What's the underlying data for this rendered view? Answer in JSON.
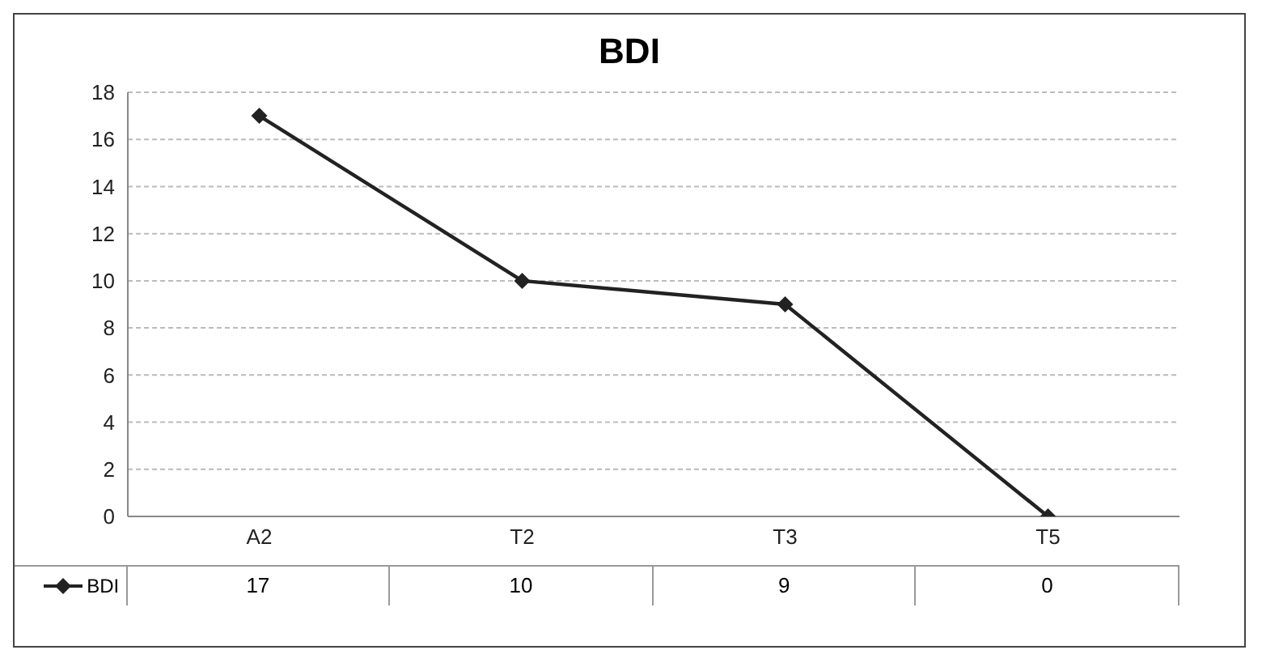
{
  "chart_data": {
    "type": "line",
    "title": "BDI",
    "categories": [
      "A2",
      "T2",
      "T3",
      "T5"
    ],
    "series": [
      {
        "name": "BDI",
        "color": "#222222",
        "values": [
          17,
          10,
          9,
          0
        ]
      }
    ],
    "ylim": [
      0,
      18
    ],
    "yticks": [
      0,
      2,
      4,
      6,
      8,
      10,
      12,
      14,
      16,
      18
    ],
    "grid": "y",
    "legend": "bottom",
    "marker": "diamond",
    "line_style": "solid",
    "data_labels": true
  }
}
